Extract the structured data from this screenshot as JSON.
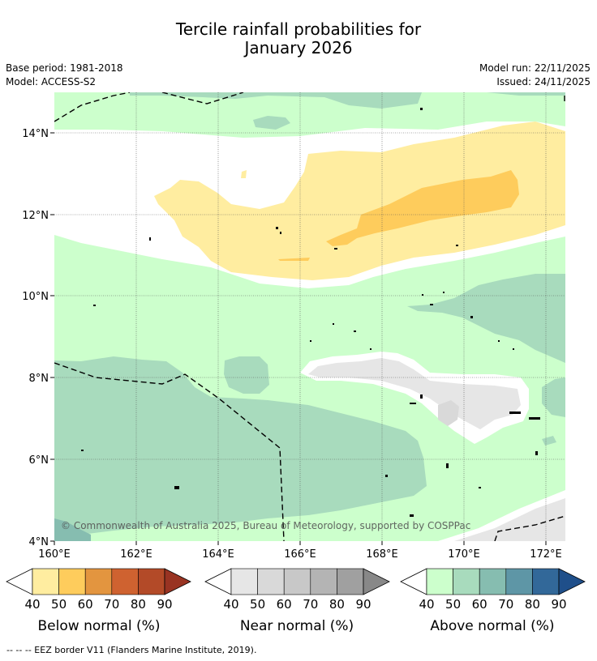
{
  "title": {
    "line1": "Tercile rainfall probabilities for",
    "line2": "January 2026"
  },
  "meta": {
    "base_period": "Base period: 1981-2018",
    "model": "Model: ACCESS-S2",
    "model_run": "Model run: 22/11/2025",
    "issued": "Issued: 24/11/2025"
  },
  "map": {
    "lon_range": [
      160,
      172.5
    ],
    "lat_range": [
      4,
      15
    ],
    "lat_ticks": [
      "4°N",
      "6°N",
      "8°N",
      "10°N",
      "12°N",
      "14°N"
    ],
    "lon_ticks": [
      "160°E",
      "162°E",
      "164°E",
      "166°E",
      "168°E",
      "170°E",
      "172°E"
    ],
    "copyright": "© Commonwealth of Australia 2025, Bureau of Meteorology, supported by COSPPac"
  },
  "legends": [
    {
      "label": "Below normal (%)",
      "ticks": [
        "40",
        "50",
        "60",
        "70",
        "80",
        "90"
      ],
      "colors": [
        "#ffeda0",
        "#fecc5c",
        "#e3953f",
        "#cf6230",
        "#b34a28",
        "#993322"
      ]
    },
    {
      "label": "Near normal (%)",
      "ticks": [
        "40",
        "50",
        "60",
        "70",
        "80",
        "90"
      ],
      "colors": [
        "#e6e6e6",
        "#d9d9d9",
        "#c8c8c8",
        "#b4b4b4",
        "#a0a0a0",
        "#888888"
      ]
    },
    {
      "label": "Above normal (%)",
      "ticks": [
        "40",
        "50",
        "60",
        "70",
        "80",
        "90"
      ],
      "colors": [
        "#ccffcc",
        "#a8dbbd",
        "#86bdb0",
        "#5e96a6",
        "#326899",
        "#1f4f8a"
      ]
    }
  ],
  "footnote": "--  --  -- EEZ border V11 (Flanders Marine Institute, 2019)."
}
